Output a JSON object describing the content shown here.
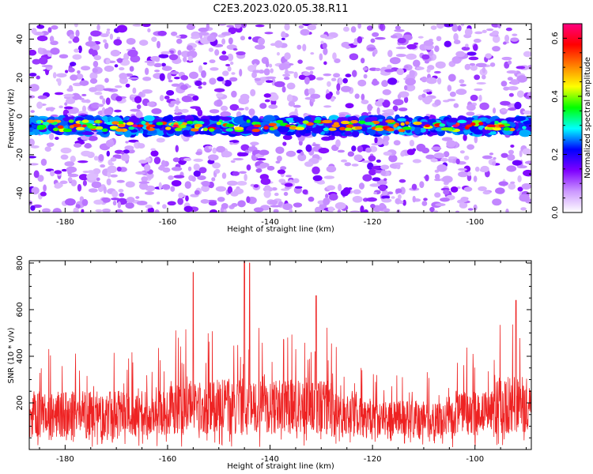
{
  "title": "C2E3.2023.020.05.38.R11",
  "chart_data": [
    {
      "type": "heatmap",
      "xlabel": "Height of straight line (km)",
      "ylabel": "Frequency (Hz)",
      "xlim": [
        -187,
        -89
      ],
      "ylim": [
        -50,
        48
      ],
      "xticks": [
        -180,
        -160,
        -140,
        -120,
        -100
      ],
      "yticks": [
        -40,
        -20,
        0,
        20,
        40
      ],
      "band_center_hz": -5,
      "band_width_hz": 6,
      "grid": false,
      "colorbar": {
        "label": "Normalized spectral amplitude",
        "range": [
          0.0,
          0.65
        ],
        "ticks": [
          0.0,
          0.2,
          0.4,
          0.6
        ],
        "colors": [
          "#ffffff",
          "#cc99ff",
          "#7f00ff",
          "#0000ff",
          "#00ffff",
          "#00ff00",
          "#ffff00",
          "#ff8000",
          "#ff0000",
          "#ff0080"
        ]
      }
    },
    {
      "type": "line",
      "xlabel": "Height of straight line (km)",
      "ylabel": "SNR (10 * v/v)",
      "xlim": [
        -187,
        -89
      ],
      "ylim": [
        0,
        810
      ],
      "xticks": [
        -180,
        -160,
        -140,
        -120,
        -100
      ],
      "yticks": [
        200,
        400,
        600,
        800
      ],
      "color": "#ee2222",
      "grid": false,
      "peaks": [
        {
          "x": -155,
          "y": 760
        },
        {
          "x": -145,
          "y": 810
        },
        {
          "x": -144,
          "y": 800
        },
        {
          "x": -131,
          "y": 660
        },
        {
          "x": -92,
          "y": 640
        }
      ]
    }
  ]
}
